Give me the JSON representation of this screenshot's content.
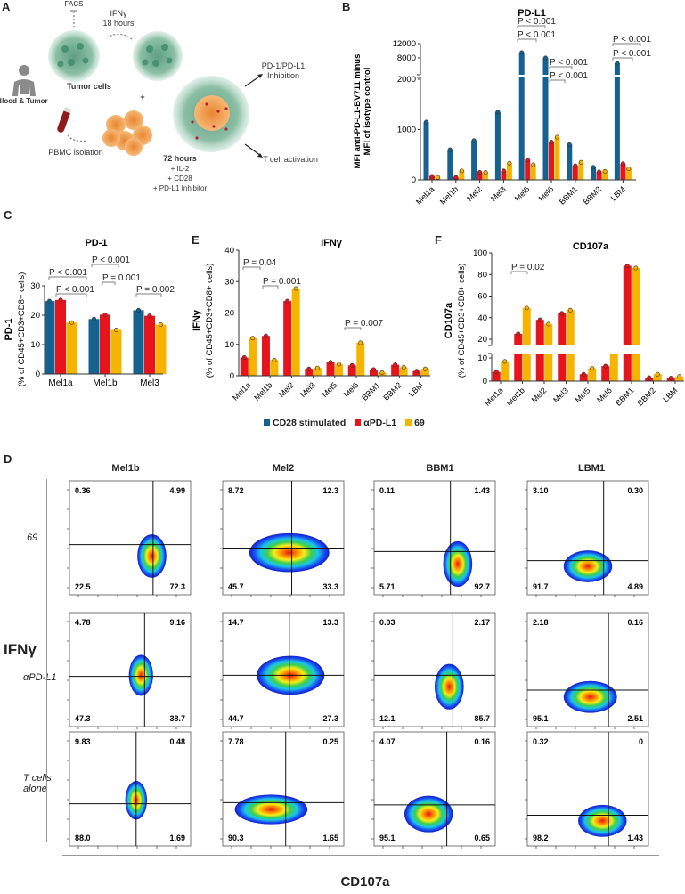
{
  "panel_labels": {
    "a": "A",
    "b": "B",
    "c": "C",
    "d": "D",
    "e": "E",
    "f": "F"
  },
  "schematic": {
    "facs": "FACS",
    "ifng": "IFNγ",
    "hours18": "18 hours",
    "tumor_cells": "Tumor cells",
    "blood_tumor": "Blood & Tumor",
    "pbmc": "PBMC isolation",
    "plus": "+",
    "pd1_line1": "PD-1/PD-L1",
    "pd1_line2": "Inhibition",
    "hours72": "72 hours",
    "il2": "+ IL-2",
    "cd28": "+ CD28",
    "inhibitor": "+ PD-L1 Inhibitor",
    "t_activation": "T cell activation"
  },
  "colors": {
    "CD28 stimulated": "#15618f",
    "αPD-L1": "#e8141c",
    "69": "#f4b400"
  },
  "legend": [
    {
      "label": "CD28 stimulated",
      "color": "#15618f"
    },
    {
      "label": "αPD-L1",
      "color": "#e8141c"
    },
    {
      "label": "69",
      "color": "#f4b400"
    }
  ],
  "chart_data": [
    {
      "id": "B",
      "type": "bar",
      "title": "PD-L1",
      "ylabel": [
        "MFI anti-PD-L1-BV711 minus",
        "MFI of isotype control"
      ],
      "categories": [
        "Mel1a",
        "Mel1b",
        "Mel2",
        "Mel3",
        "Mel5",
        "Mel6",
        "BBM1",
        "BBM2",
        "LBM"
      ],
      "yticks": [
        0,
        1000,
        2000,
        8000,
        12000
      ],
      "ylim": [
        0,
        12000
      ],
      "axis_break": [
        2000,
        4000
      ],
      "series": [
        {
          "name": "CD28 stimulated",
          "values": [
            1150,
            600,
            780,
            1350,
            9500,
            8000,
            700,
            250,
            6500
          ]
        },
        {
          "name": "αPD-L1",
          "values": [
            70,
            50,
            150,
            180,
            400,
            750,
            280,
            160,
            320
          ]
        },
        {
          "name": "69",
          "values": [
            50,
            180,
            150,
            330,
            300,
            850,
            350,
            170,
            220
          ]
        }
      ],
      "annotations": [
        {
          "text": "P < 0.001",
          "compare": "Mel5 CD28 stimulated vs 69"
        },
        {
          "text": "P < 0.001",
          "compare": "Mel5 CD28 stimulated vs αPD-L1"
        },
        {
          "text": "P < 0.001",
          "compare": "Mel6 CD28 stimulated vs 69"
        },
        {
          "text": "P < 0.001",
          "compare": "Mel6 CD28 stimulated vs αPD-L1"
        },
        {
          "text": "P < 0.001",
          "compare": "LBM CD28 stimulated vs 69"
        },
        {
          "text": "P < 0.001",
          "compare": "LBM CD28 stimulated vs αPD-L1"
        }
      ]
    },
    {
      "id": "C",
      "type": "bar",
      "title": "PD-1",
      "ylabel": [
        "PD-1",
        "(% of CD45+CD3+CD8+ cells)"
      ],
      "categories": [
        "Mel1a",
        "Mel1b",
        "Mel3"
      ],
      "yticks": [
        0,
        10,
        20,
        30
      ],
      "ylim": [
        0,
        30
      ],
      "series": [
        {
          "name": "CD28 stimulated",
          "values": [
            24.8,
            18.7,
            21.7
          ]
        },
        {
          "name": "αPD-L1",
          "values": [
            25.2,
            20.2,
            19.8
          ]
        },
        {
          "name": "69",
          "values": [
            17.5,
            15.0,
            16.8
          ]
        }
      ],
      "annotations": [
        {
          "text": "P < 0.001",
          "compare": "Mel1a CD28 stimulated vs 69"
        },
        {
          "text": "P < 0.001",
          "compare": "Mel1a αPD-L1 vs 69"
        },
        {
          "text": "P < 0.001",
          "compare": "Mel1b CD28 stimulated vs 69"
        },
        {
          "text": "P = 0.001",
          "compare": "Mel1b αPD-L1 vs 69"
        },
        {
          "text": "P = 0.002",
          "compare": "Mel3 CD28 stimulated vs 69"
        }
      ]
    },
    {
      "id": "E",
      "type": "bar",
      "title": "IFNγ",
      "ylabel": [
        "IFNγ",
        "(% of CD45+CD3+CD8+ cells)"
      ],
      "categories": [
        "Mel1a",
        "Mel1b",
        "Mel2",
        "Mel3",
        "Mel5",
        "Mel6",
        "BBM1",
        "BBM2",
        "LBM"
      ],
      "yticks": [
        0,
        10,
        20,
        30,
        40
      ],
      "ylim": [
        0,
        40
      ],
      "series": [
        {
          "name": "αPD-L1",
          "values": [
            5.8,
            12.7,
            23.8,
            2.2,
            4.3,
            3.3,
            2.0,
            3.5,
            1.5
          ]
        },
        {
          "name": "69",
          "values": [
            12.0,
            5.0,
            27.8,
            2.5,
            3.7,
            10.5,
            1.0,
            2.7,
            2.2
          ]
        }
      ],
      "annotations": [
        {
          "text": "P = 0.04",
          "compare": "Mel1a αPD-L1 vs 69"
        },
        {
          "text": "P = 0.001",
          "compare": "Mel1b αPD-L1 vs 69"
        },
        {
          "text": "P = 0.007",
          "compare": "Mel6 αPD-L1 vs 69"
        }
      ]
    },
    {
      "id": "F",
      "type": "bar",
      "title": "CD107a",
      "ylabel": [
        "CD107a",
        "(% of CD45+CD3+CD8+ cells)"
      ],
      "categories": [
        "Mel1a",
        "Mel1b",
        "Mel2",
        "Mel3",
        "Mel5",
        "Mel6",
        "BBM1",
        "BBM2",
        "LBM"
      ],
      "yticks": [
        0,
        10,
        20,
        40,
        60,
        80,
        100
      ],
      "ylim": [
        0,
        100
      ],
      "axis_break": [
        10,
        20
      ],
      "series": [
        {
          "name": "αPD-L1",
          "values": [
            4,
            25,
            38,
            44,
            3,
            6.5,
            88,
            1.5,
            1.3
          ]
        },
        {
          "name": "69",
          "values": [
            8.5,
            49,
            34,
            47,
            5.5,
            14,
            86,
            3,
            2
          ]
        }
      ],
      "annotations": [
        {
          "text": "P = 0.02",
          "compare": "Mel1b αPD-L1 vs 69"
        }
      ]
    }
  ],
  "flow": {
    "columns": [
      "Mel1b",
      "Mel2",
      "BBM1",
      "LBM1"
    ],
    "y_axis_label": "IFNγ",
    "x_axis_label": "CD107a",
    "rows": [
      {
        "label": "69",
        "quadrants": [
          [
            "0.36",
            "4.99",
            "22.5",
            "72.3"
          ],
          [
            "8.72",
            "12.3",
            "45.7",
            "33.3"
          ],
          [
            "0.11",
            "1.43",
            "5.71",
            "92.7"
          ],
          [
            "3.10",
            "0.30",
            "91.7",
            "4.89"
          ]
        ]
      },
      {
        "label": "αPD-L1",
        "quadrants": [
          [
            "4.78",
            "9.16",
            "47.3",
            "38.7"
          ],
          [
            "14.7",
            "13.3",
            "44.7",
            "27.3"
          ],
          [
            "0.03",
            "2.17",
            "12.1",
            "85.7"
          ],
          [
            "2.18",
            "0.16",
            "95.1",
            "2.51"
          ]
        ]
      },
      {
        "label": "T cells alone",
        "quadrants": [
          [
            "9.83",
            "0.48",
            "88.0",
            "1.69"
          ],
          [
            "7.78",
            "0.25",
            "90.3",
            "1.65"
          ],
          [
            "4.07",
            "0.16",
            "95.1",
            "0.65"
          ],
          [
            "0.32",
            "0",
            "98.2",
            "1.43"
          ]
        ]
      }
    ]
  }
}
